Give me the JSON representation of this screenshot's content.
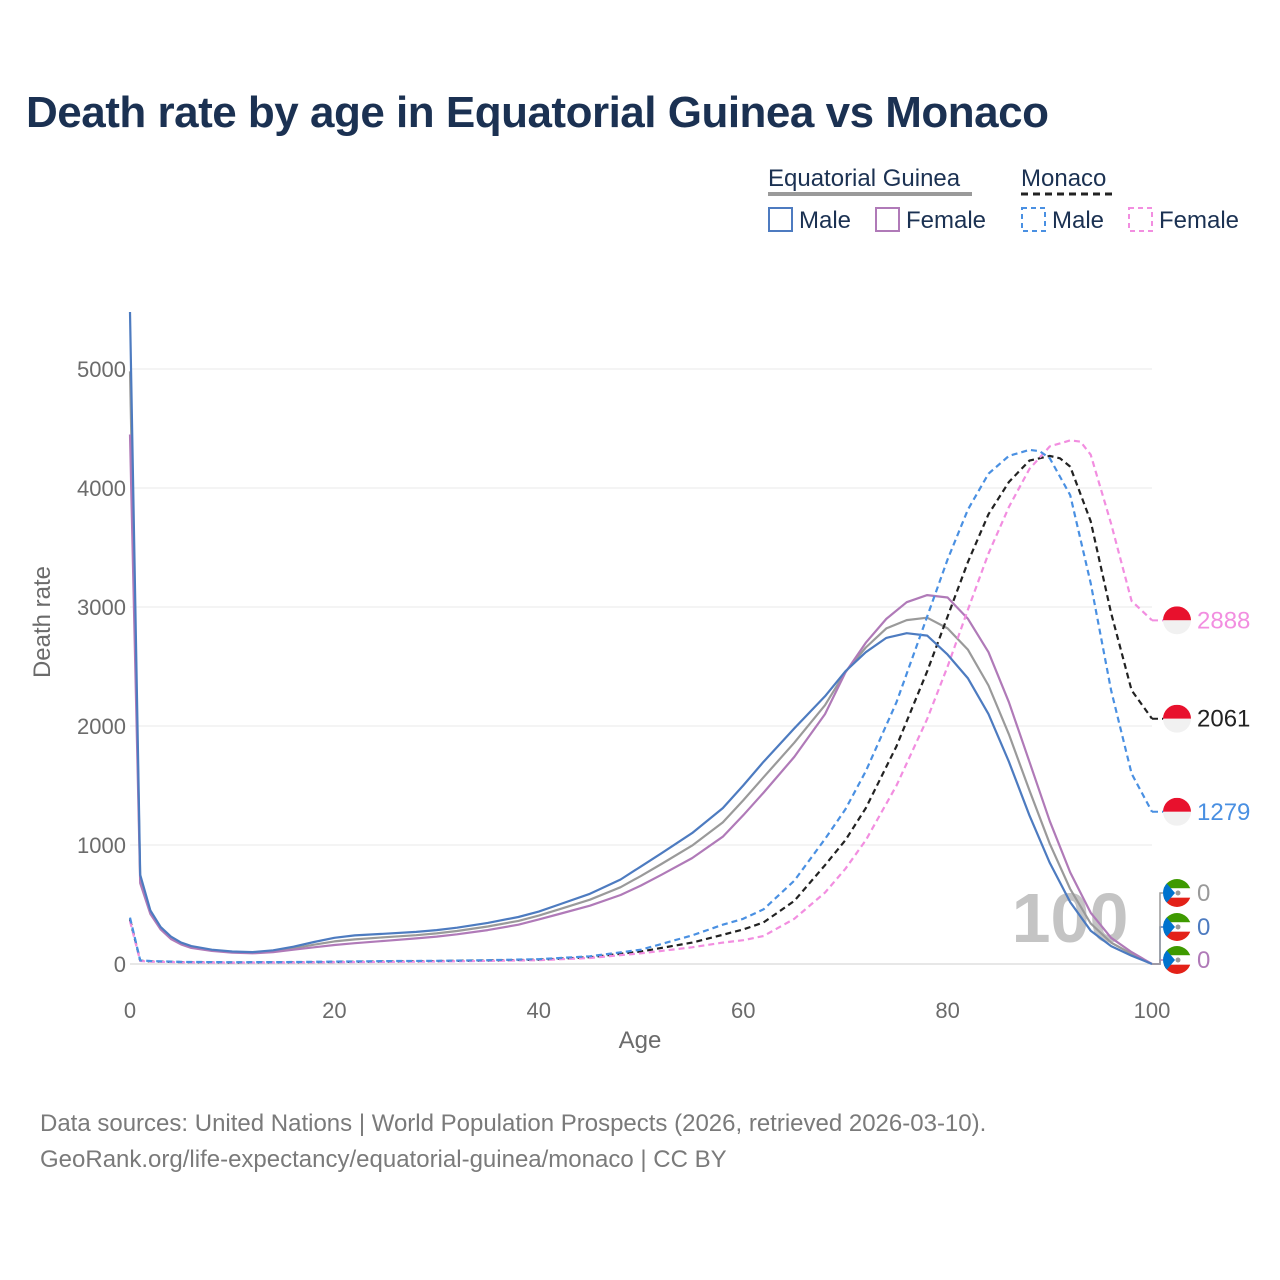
{
  "title": "Death rate by age in Equatorial Guinea vs Monaco",
  "legend": {
    "groups": [
      {
        "name": "Equatorial Guinea",
        "style": "solid",
        "underline_color": "#9a9a9a",
        "items": [
          {
            "label": "Male",
            "color": "#4d7bc0"
          },
          {
            "label": "Female",
            "color": "#b07ab8"
          }
        ]
      },
      {
        "name": "Monaco",
        "style": "dashed",
        "underline_color": "#222222",
        "items": [
          {
            "label": "Male",
            "color": "#4a90e2"
          },
          {
            "label": "Female",
            "color": "#f28ee0"
          }
        ]
      }
    ]
  },
  "year_watermark": "100",
  "footer": {
    "line1": "Data sources: United Nations | World Population Prospects (2026, retrieved 2026-03-10).",
    "line2": "GeoRank.org/life-expectancy/equatorial-guinea/monaco | CC BY"
  },
  "chart_data": {
    "type": "line",
    "title": "Death rate by age in Equatorial Guinea vs Monaco",
    "xlabel": "Age",
    "ylabel": "Death rate",
    "xlim": [
      0,
      100
    ],
    "ylim": [
      0,
      5000
    ],
    "x_ticks": [
      0,
      20,
      40,
      60,
      80,
      100
    ],
    "y_ticks": [
      0,
      1000,
      2000,
      3000,
      4000,
      5000
    ],
    "grid": true,
    "series": [
      {
        "name": "Equatorial Guinea Male",
        "country": "Equatorial Guinea",
        "sex": "Male",
        "color": "#4d7bc0",
        "dash": false,
        "x": [
          0,
          1,
          2,
          3,
          4,
          5,
          6,
          8,
          10,
          12,
          14,
          16,
          18,
          20,
          22,
          25,
          28,
          30,
          32,
          35,
          38,
          40,
          42,
          45,
          48,
          50,
          52,
          55,
          58,
          60,
          62,
          65,
          68,
          70,
          72,
          74,
          76,
          78,
          80,
          82,
          84,
          86,
          88,
          90,
          92,
          94,
          96,
          98,
          100
        ],
        "y": [
          5500,
          750,
          450,
          310,
          230,
          180,
          150,
          120,
          105,
          100,
          115,
          145,
          185,
          220,
          240,
          255,
          270,
          285,
          305,
          345,
          395,
          440,
          500,
          590,
          710,
          820,
          930,
          1100,
          1310,
          1500,
          1700,
          1980,
          2250,
          2460,
          2620,
          2740,
          2780,
          2760,
          2600,
          2400,
          2100,
          1700,
          1250,
          850,
          520,
          280,
          150,
          70,
          0
        ],
        "end_value": "0",
        "end_label_color": "#4d7bc0",
        "flag": "gq"
      },
      {
        "name": "Equatorial Guinea Female",
        "country": "Equatorial Guinea",
        "sex": "Female",
        "color": "#b07ab8",
        "dash": false,
        "x": [
          0,
          1,
          2,
          3,
          4,
          5,
          6,
          8,
          10,
          12,
          14,
          16,
          18,
          20,
          22,
          25,
          28,
          30,
          32,
          35,
          38,
          40,
          42,
          45,
          48,
          50,
          52,
          55,
          58,
          60,
          62,
          65,
          68,
          70,
          72,
          74,
          76,
          78,
          80,
          82,
          84,
          86,
          88,
          90,
          92,
          94,
          96,
          98,
          100
        ],
        "y": [
          4450,
          680,
          420,
          290,
          210,
          165,
          135,
          110,
          95,
          90,
          100,
          120,
          140,
          160,
          175,
          195,
          215,
          230,
          250,
          285,
          330,
          375,
          420,
          490,
          580,
          660,
          750,
          890,
          1070,
          1250,
          1440,
          1740,
          2100,
          2450,
          2700,
          2900,
          3040,
          3100,
          3080,
          2900,
          2620,
          2200,
          1700,
          1200,
          770,
          430,
          220,
          100,
          0
        ],
        "end_value": "0",
        "end_label_color": "#b07ab8",
        "flag": "gq"
      },
      {
        "name": "Equatorial Guinea Total",
        "country": "Equatorial Guinea",
        "sex": "Total",
        "color": "#9a9a9a",
        "dash": false,
        "x": [
          0,
          1,
          2,
          3,
          4,
          5,
          6,
          8,
          10,
          12,
          14,
          16,
          18,
          20,
          22,
          25,
          28,
          30,
          32,
          35,
          38,
          40,
          42,
          45,
          48,
          50,
          52,
          55,
          58,
          60,
          62,
          65,
          68,
          70,
          72,
          74,
          76,
          78,
          80,
          82,
          84,
          86,
          88,
          90,
          92,
          94,
          96,
          98,
          100
        ],
        "y": [
          4980,
          715,
          435,
          300,
          220,
          172,
          142,
          115,
          100,
          95,
          108,
          132,
          162,
          190,
          207,
          225,
          242,
          257,
          277,
          315,
          362,
          407,
          460,
          540,
          645,
          740,
          840,
          995,
          1190,
          1375,
          1570,
          1860,
          2175,
          2455,
          2660,
          2820,
          2890,
          2910,
          2820,
          2640,
          2340,
          1930,
          1460,
          1010,
          630,
          340,
          180,
          85,
          0
        ],
        "end_value": "0",
        "end_label_color": "#9a9a9a",
        "flag": "gq"
      },
      {
        "name": "Monaco Male",
        "country": "Monaco",
        "sex": "Male",
        "color": "#4a90e2",
        "dash": true,
        "x": [
          0,
          1,
          2,
          5,
          10,
          15,
          20,
          25,
          30,
          35,
          40,
          45,
          50,
          55,
          58,
          60,
          62,
          65,
          68,
          70,
          72,
          75,
          78,
          80,
          82,
          84,
          86,
          88,
          89,
          90,
          92,
          94,
          96,
          98,
          100
        ],
        "y": [
          390,
          30,
          25,
          18,
          15,
          16,
          20,
          24,
          27,
          32,
          40,
          65,
          120,
          240,
          330,
          380,
          460,
          700,
          1050,
          1300,
          1620,
          2200,
          2920,
          3400,
          3820,
          4120,
          4270,
          4320,
          4310,
          4250,
          3940,
          3200,
          2300,
          1600,
          1279
        ],
        "end_value": "1279",
        "end_label_color": "#4a90e2",
        "flag": "mc"
      },
      {
        "name": "Monaco Female",
        "country": "Monaco",
        "sex": "Female",
        "color": "#f28ee0",
        "dash": true,
        "x": [
          0,
          1,
          2,
          5,
          10,
          15,
          20,
          25,
          30,
          35,
          40,
          45,
          50,
          55,
          58,
          60,
          62,
          65,
          68,
          70,
          72,
          75,
          78,
          80,
          82,
          84,
          86,
          88,
          90,
          92,
          93,
          94,
          96,
          98,
          100
        ],
        "y": [
          360,
          25,
          20,
          14,
          12,
          13,
          15,
          18,
          21,
          26,
          32,
          50,
          90,
          140,
          180,
          200,
          235,
          380,
          600,
          800,
          1040,
          1500,
          2060,
          2500,
          2980,
          3450,
          3840,
          4160,
          4350,
          4400,
          4390,
          4280,
          3700,
          3050,
          2888
        ],
        "end_value": "2888",
        "end_label_color": "#f28ee0",
        "flag": "mc"
      },
      {
        "name": "Monaco Total",
        "country": "Monaco",
        "sex": "Total",
        "color": "#222222",
        "dash": true,
        "x": [
          0,
          1,
          2,
          5,
          10,
          15,
          20,
          25,
          30,
          35,
          40,
          45,
          50,
          55,
          58,
          60,
          62,
          65,
          68,
          70,
          72,
          75,
          78,
          80,
          82,
          84,
          86,
          88,
          90,
          91,
          92,
          94,
          96,
          98,
          100
        ],
        "y": [
          375,
          28,
          22,
          16,
          13,
          14,
          17,
          21,
          24,
          29,
          36,
          57,
          105,
          180,
          245,
          290,
          350,
          530,
          830,
          1040,
          1310,
          1830,
          2460,
          2920,
          3380,
          3780,
          4050,
          4230,
          4270,
          4250,
          4180,
          3720,
          2950,
          2300,
          2061
        ],
        "end_value": "2061",
        "end_label_color": "#222222",
        "flag": "mc"
      }
    ]
  }
}
